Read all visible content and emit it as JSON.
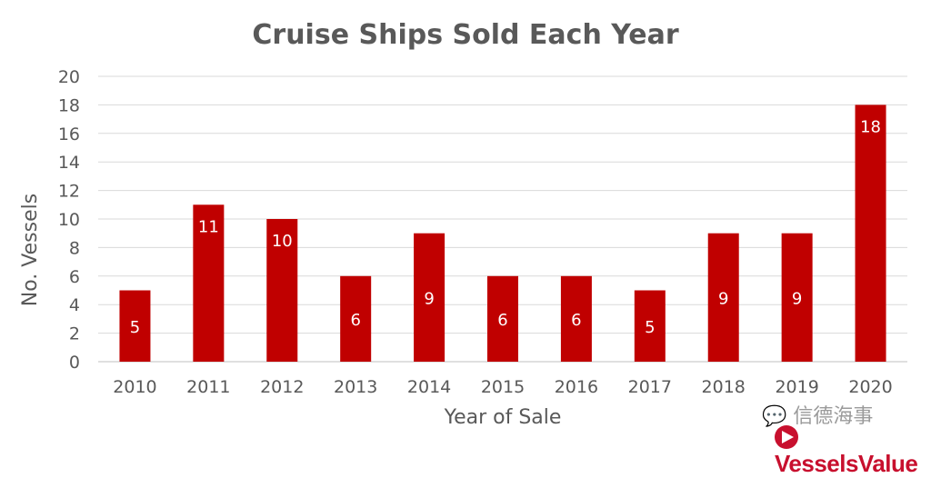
{
  "chart_data": {
    "type": "bar",
    "title": "Cruise Ships Sold Each Year",
    "xlabel": "Year of Sale",
    "ylabel": "No. Vessels",
    "categories": [
      "2010",
      "2011",
      "2012",
      "2013",
      "2014",
      "2015",
      "2016",
      "2017",
      "2018",
      "2019",
      "2020"
    ],
    "values": [
      5,
      11,
      10,
      6,
      9,
      6,
      6,
      5,
      9,
      9,
      18
    ],
    "ylim": [
      0,
      20
    ],
    "yticks": [
      0,
      2,
      4,
      6,
      8,
      10,
      12,
      14,
      16,
      18,
      20
    ],
    "grid": true,
    "data_labels": true,
    "bar_color": "#c00000"
  },
  "watermark": {
    "wechat": "信德海事",
    "brand": "VesselsValue"
  }
}
